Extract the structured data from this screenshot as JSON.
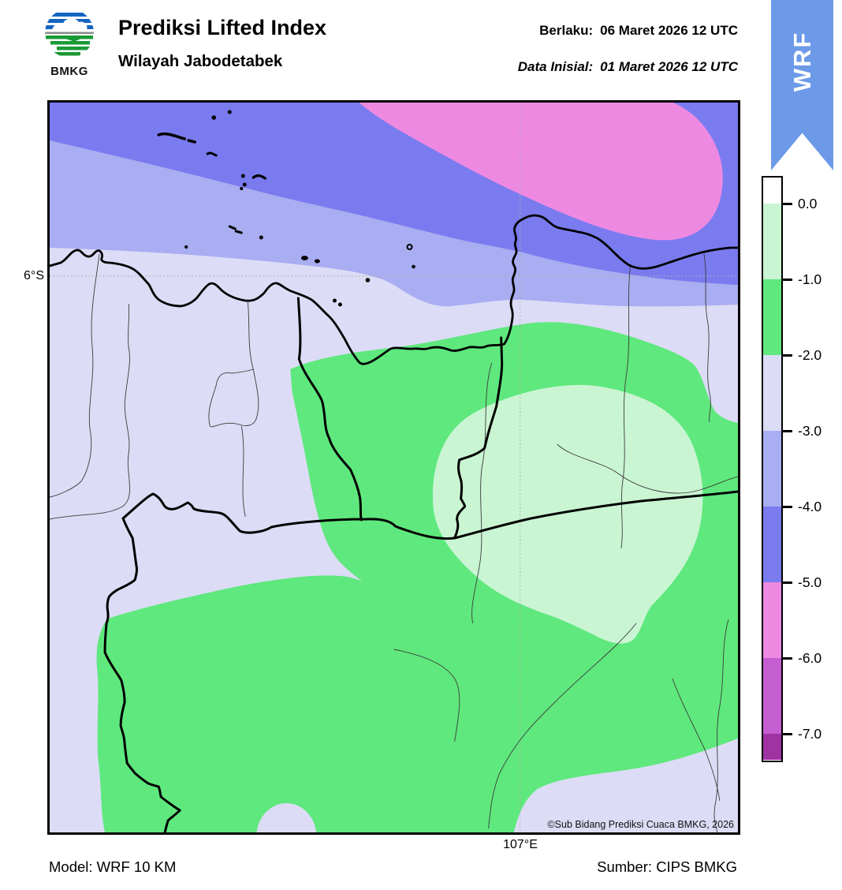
{
  "header": {
    "logo_text": "BMKG",
    "title": "Prediksi Lifted Index",
    "subtitle": "Wilayah Jabodetabek",
    "valid_label": "Berlaku:",
    "valid_value": "06 Maret 2026 12 UTC",
    "init_label": "Data Inisial:",
    "init_value": "01 Maret 2026 12 UTC",
    "ribbon_text": "WRF"
  },
  "map": {
    "lat_label": "6°S",
    "lon_label": "107°E",
    "copyright": "©Sub Bidang Prediksi Cuaca BMKG, 2026",
    "field_colors": {
      "li_0_m1": "#c9f5d3",
      "li_m1_m2": "#5fe87d",
      "li_m2_m3": "#dcdcf6",
      "li_m3_m4": "#a9adf1",
      "li_m4_m5": "#7a7bef",
      "li_m5_m6": "#ee89e2"
    }
  },
  "colorbar": {
    "tick_labels": [
      "0.0",
      "-1.0",
      "-2.0",
      "-3.0",
      "-4.0",
      "-5.0",
      "-6.0",
      "-7.0"
    ],
    "segment_colors": [
      "#ffffff",
      "#c9f5d3",
      "#5fe87d",
      "#dcdcf6",
      "#a9adf1",
      "#7a7bef",
      "#ee89e2",
      "#c55ed0",
      "#a033a2"
    ]
  },
  "footer": {
    "model_label": "Model:",
    "model_value": "WRF 10 KM",
    "source_label": "Sumber:",
    "source_value": "CIPS BMKG"
  }
}
